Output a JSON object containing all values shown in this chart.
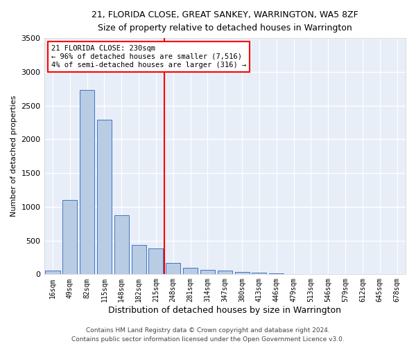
{
  "title1": "21, FLORIDA CLOSE, GREAT SANKEY, WARRINGTON, WA5 8ZF",
  "title2": "Size of property relative to detached houses in Warrington",
  "xlabel": "Distribution of detached houses by size in Warrington",
  "ylabel": "Number of detached properties",
  "bar_labels": [
    "16sqm",
    "49sqm",
    "82sqm",
    "115sqm",
    "148sqm",
    "182sqm",
    "215sqm",
    "248sqm",
    "281sqm",
    "314sqm",
    "347sqm",
    "380sqm",
    "413sqm",
    "446sqm",
    "479sqm",
    "513sqm",
    "546sqm",
    "579sqm",
    "612sqm",
    "645sqm",
    "678sqm"
  ],
  "bar_values": [
    52,
    1100,
    2730,
    2290,
    880,
    430,
    380,
    170,
    95,
    65,
    55,
    35,
    20,
    18,
    5,
    3,
    3,
    2,
    2,
    1,
    1
  ],
  "bar_color": "#b8cce4",
  "bar_edge_color": "#4472c4",
  "background_color": "#e8eef8",
  "grid_color": "#ffffff",
  "vline_x": 6.5,
  "vline_color": "red",
  "annotation_title": "21 FLORIDA CLOSE: 230sqm",
  "annotation_line1": "← 96% of detached houses are smaller (7,516)",
  "annotation_line2": "4% of semi-detached houses are larger (316) →",
  "footer1": "Contains HM Land Registry data © Crown copyright and database right 2024.",
  "footer2": "Contains public sector information licensed under the Open Government Licence v3.0.",
  "ylim": [
    0,
    3500
  ],
  "yticks": [
    0,
    500,
    1000,
    1500,
    2000,
    2500,
    3000,
    3500
  ]
}
